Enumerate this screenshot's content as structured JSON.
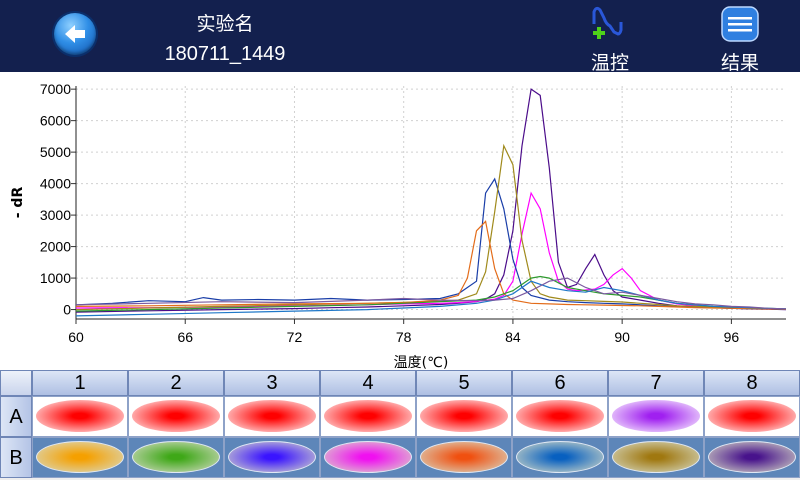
{
  "header": {
    "title": "实验名",
    "experiment_id": "180711_1449",
    "temp_label": "温控",
    "result_label": "结果"
  },
  "chart_data": {
    "type": "line",
    "xlabel": "温度(℃)",
    "ylabel": "- dR",
    "xlim": [
      60,
      99
    ],
    "ylim": [
      -300,
      7100
    ],
    "xticks": [
      "60",
      "66",
      "72",
      "78",
      "84",
      "90",
      "96"
    ],
    "yticks": [
      "0",
      "1000",
      "2000",
      "3000",
      "4000",
      "5000",
      "6000",
      "7000"
    ],
    "grid": true,
    "series": [
      {
        "color": "#4b0c8a",
        "x": [
          60,
          64,
          68,
          72,
          74,
          76,
          78,
          80,
          81,
          82,
          82.5,
          83,
          83.5,
          84,
          84.5,
          85,
          85.5,
          86,
          86.5,
          87,
          87.5,
          88,
          88.5,
          89,
          89.5,
          90,
          91,
          92,
          93,
          94,
          95,
          96,
          97,
          98,
          99
        ],
        "y": [
          -80,
          -40,
          0,
          30,
          60,
          80,
          120,
          160,
          200,
          250,
          330,
          500,
          1100,
          2500,
          5200,
          7000,
          6800,
          4500,
          1500,
          700,
          800,
          1300,
          1750,
          1100,
          600,
          400,
          300,
          200,
          120,
          80,
          60,
          40,
          20,
          10,
          0
        ]
      },
      {
        "color": "#ff00ff",
        "x": [
          60,
          64,
          68,
          72,
          76,
          78,
          80,
          81,
          82,
          83,
          83.5,
          84,
          84.5,
          85,
          85.5,
          86,
          86.5,
          87,
          87.5,
          88,
          88.5,
          89,
          89.5,
          90,
          90.5,
          91,
          92,
          93,
          94,
          95,
          96,
          97,
          98,
          99
        ],
        "y": [
          50,
          60,
          80,
          120,
          150,
          180,
          200,
          220,
          260,
          330,
          450,
          900,
          2400,
          3700,
          3200,
          1800,
          900,
          650,
          600,
          620,
          650,
          800,
          1100,
          1300,
          1000,
          600,
          300,
          180,
          120,
          80,
          60,
          40,
          20,
          10
        ]
      },
      {
        "color": "#1a3ea8",
        "x": [
          60,
          62,
          64,
          66,
          67,
          68,
          70,
          72,
          74,
          76,
          78,
          80,
          81,
          82,
          82.5,
          83,
          83.5,
          84,
          84.5,
          85,
          86,
          87,
          88,
          89,
          90,
          91,
          92,
          93,
          94,
          95,
          96,
          97,
          98,
          99
        ],
        "y": [
          150,
          200,
          280,
          250,
          380,
          300,
          320,
          300,
          350,
          300,
          320,
          350,
          500,
          900,
          3700,
          4150,
          3200,
          1600,
          700,
          450,
          300,
          250,
          220,
          200,
          180,
          150,
          120,
          100,
          80,
          60,
          40,
          30,
          20,
          10
        ]
      },
      {
        "color": "#a08a1c",
        "x": [
          60,
          64,
          68,
          72,
          76,
          78,
          80,
          81,
          82,
          82.5,
          83,
          83.5,
          84,
          84.5,
          85,
          85.5,
          86,
          86.5,
          87,
          88,
          89,
          90,
          91,
          92,
          93,
          94,
          95,
          96,
          97,
          98,
          99
        ],
        "y": [
          0,
          50,
          100,
          150,
          200,
          230,
          260,
          300,
          500,
          1200,
          3100,
          5200,
          4600,
          2200,
          900,
          500,
          400,
          350,
          300,
          280,
          260,
          240,
          200,
          160,
          120,
          100,
          80,
          60,
          40,
          20,
          10
        ]
      },
      {
        "color": "#e36c1a",
        "x": [
          60,
          64,
          68,
          72,
          76,
          78,
          80,
          81,
          81.5,
          82,
          82.5,
          83,
          83.5,
          84,
          84.5,
          85,
          86,
          87,
          88,
          89,
          90,
          91,
          92,
          93,
          94,
          95,
          96,
          97,
          98,
          99
        ],
        "y": [
          100,
          120,
          150,
          180,
          200,
          220,
          300,
          450,
          1000,
          2500,
          2800,
          1300,
          500,
          300,
          250,
          200,
          180,
          160,
          150,
          140,
          130,
          120,
          100,
          80,
          60,
          50,
          40,
          30,
          20,
          10
        ]
      },
      {
        "color": "#2e9a2e",
        "x": [
          60,
          64,
          68,
          72,
          76,
          78,
          80,
          82,
          83,
          84,
          84.5,
          85,
          85.5,
          86,
          86.5,
          87,
          88,
          89,
          90,
          91,
          92,
          93,
          94,
          95,
          96,
          97,
          98,
          99
        ],
        "y": [
          -50,
          0,
          50,
          100,
          150,
          200,
          250,
          300,
          400,
          600,
          800,
          1000,
          1050,
          1000,
          850,
          700,
          600,
          500,
          450,
          400,
          300,
          200,
          150,
          100,
          80,
          60,
          40,
          20
        ]
      },
      {
        "color": "#1f78c8",
        "x": [
          60,
          64,
          68,
          72,
          76,
          78,
          80,
          82,
          83,
          84,
          85,
          86,
          87,
          88,
          89,
          90,
          91,
          92,
          93,
          94,
          95,
          96,
          97,
          98,
          99
        ],
        "y": [
          -200,
          -150,
          -100,
          -50,
          0,
          50,
          100,
          200,
          300,
          500,
          900,
          700,
          600,
          550,
          700,
          600,
          450,
          300,
          200,
          150,
          100,
          80,
          60,
          40,
          20
        ]
      },
      {
        "color": "#7a5aa0",
        "x": [
          60,
          64,
          68,
          72,
          76,
          78,
          80,
          82,
          83,
          84,
          85,
          86,
          87,
          88,
          89,
          90,
          91,
          92,
          93,
          94,
          95,
          96,
          97,
          98,
          99
        ],
        "y": [
          150,
          200,
          250,
          220,
          300,
          350,
          300,
          280,
          300,
          350,
          600,
          900,
          1000,
          700,
          500,
          550,
          450,
          350,
          250,
          180,
          150,
          100,
          80,
          40,
          20
        ]
      }
    ]
  },
  "wells": {
    "columns": [
      "1",
      "2",
      "3",
      "4",
      "5",
      "6",
      "7",
      "8"
    ],
    "rows": [
      {
        "label": "A",
        "colors": [
          "#ff0000",
          "#ff0000",
          "#ff0000",
          "#ff0000",
          "#ff0000",
          "#ff0000",
          "#a020f0",
          "#ff0000"
        ]
      },
      {
        "label": "B",
        "colors": [
          "#f5a000",
          "#3fa818",
          "#3a14ff",
          "#f010f0",
          "#f05010",
          "#0860c0",
          "#a07810",
          "#48138c"
        ]
      }
    ]
  }
}
